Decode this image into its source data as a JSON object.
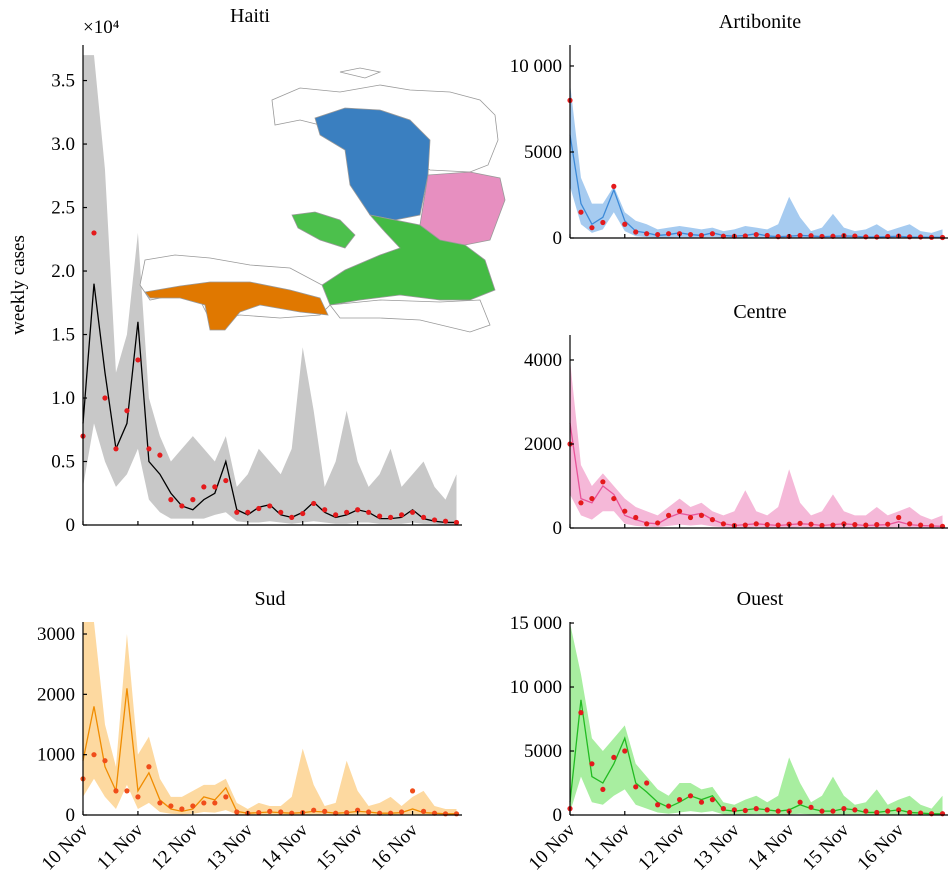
{
  "chart_data": [
    {
      "type": "line",
      "title": "Haiti",
      "ylabel": "weekly cases",
      "multiplier": "×10⁴",
      "x": [
        0,
        0.2,
        0.4,
        0.6,
        0.8,
        1,
        1.2,
        1.4,
        1.6,
        1.8,
        2,
        2.2,
        2.4,
        2.6,
        2.8,
        3,
        3.2,
        3.4,
        3.6,
        3.8,
        4,
        4.2,
        4.4,
        4.6,
        4.8,
        5,
        5.2,
        5.4,
        5.6,
        5.8,
        6,
        6.2,
        6.4,
        6.6,
        6.8
      ],
      "xlim": [
        0,
        6.9
      ],
      "xticks": [
        0,
        1,
        2,
        3,
        4,
        5,
        6
      ],
      "ylim": [
        0,
        3.78
      ],
      "yticks": [
        0,
        0.5,
        {
          "value": 1,
          "label": "1.0"
        },
        1.5,
        {
          "value": 2,
          "label": "2.0"
        },
        2.5,
        {
          "value": 3,
          "label": "3.0"
        },
        3.5
      ],
      "series": [
        {
          "kind": "band",
          "color": "#c8c8c8",
          "lower": [
            0.3,
            0.8,
            0.5,
            0.3,
            0.4,
            0.6,
            0.2,
            0.1,
            0.05,
            0.05,
            0.05,
            0.05,
            0.08,
            0.1,
            0.03,
            0.02,
            0.02,
            0.03,
            0.02,
            0.01,
            0.02,
            0.03,
            0.02,
            0.01,
            0.01,
            0.02,
            0.02,
            0.01,
            0.01,
            0.01,
            0.02,
            0.01,
            0.01,
            0,
            0
          ],
          "upper": [
            3.7,
            3.7,
            2.8,
            1.2,
            1.5,
            2.3,
            1.0,
            0.7,
            0.5,
            0.6,
            0.7,
            0.6,
            0.5,
            0.7,
            0.3,
            0.4,
            0.6,
            0.5,
            0.4,
            0.6,
            1.4,
            0.9,
            0.3,
            0.5,
            0.9,
            0.5,
            0.3,
            0.4,
            0.6,
            0.3,
            0.4,
            0.5,
            0.3,
            0.2,
            0.4
          ]
        },
        {
          "kind": "line",
          "color": "#000000",
          "values": [
            0.8,
            1.9,
            1.2,
            0.6,
            0.8,
            1.6,
            0.5,
            0.4,
            0.25,
            0.15,
            0.12,
            0.2,
            0.25,
            0.5,
            0.12,
            0.08,
            0.14,
            0.16,
            0.08,
            0.06,
            0.1,
            0.18,
            0.1,
            0.06,
            0.08,
            0.12,
            0.1,
            0.05,
            0.05,
            0.06,
            0.12,
            0.05,
            0.03,
            0.02,
            0.02
          ]
        },
        {
          "kind": "points",
          "color": "#e41a1c",
          "values": [
            0.7,
            2.3,
            1.0,
            0.6,
            0.9,
            1.3,
            0.6,
            0.55,
            0.2,
            0.15,
            0.2,
            0.3,
            0.3,
            0.35,
            0.1,
            0.1,
            0.13,
            0.15,
            0.1,
            0.06,
            0.09,
            0.17,
            0.12,
            0.08,
            0.1,
            0.12,
            0.1,
            0.07,
            0.06,
            0.08,
            0.1,
            0.06,
            0.04,
            0.03,
            0.02
          ]
        }
      ]
    },
    {
      "type": "line",
      "title": "Artibonite",
      "x": [
        0,
        0.2,
        0.4,
        0.6,
        0.8,
        1,
        1.2,
        1.4,
        1.6,
        1.8,
        2,
        2.2,
        2.4,
        2.6,
        2.8,
        3,
        3.2,
        3.4,
        3.6,
        3.8,
        4,
        4.2,
        4.4,
        4.6,
        4.8,
        5,
        5.2,
        5.4,
        5.6,
        5.8,
        6,
        6.2,
        6.4,
        6.6,
        6.8
      ],
      "xlim": [
        0,
        6.9
      ],
      "xticks": [
        0,
        1,
        2,
        3,
        4,
        5,
        6
      ],
      "ylim": [
        0,
        11220
      ],
      "yticks": [
        0,
        5000,
        {
          "value": 10000,
          "label": "10 000"
        }
      ],
      "series": [
        {
          "kind": "band",
          "color": "#a6cbf0",
          "lower": [
            3000,
            800,
            300,
            500,
            1500,
            400,
            100,
            50,
            30,
            30,
            40,
            30,
            40,
            50,
            20,
            20,
            20,
            30,
            20,
            10,
            20,
            30,
            20,
            10,
            10,
            20,
            20,
            10,
            10,
            10,
            20,
            10,
            10,
            0,
            0
          ],
          "upper": [
            9000,
            3500,
            2000,
            2000,
            3000,
            1500,
            1000,
            800,
            500,
            600,
            700,
            600,
            500,
            600,
            400,
            500,
            700,
            600,
            500,
            800,
            2400,
            1200,
            400,
            600,
            1400,
            600,
            400,
            500,
            800,
            400,
            600,
            800,
            400,
            300,
            500
          ]
        },
        {
          "kind": "line",
          "color": "#3d8ad8",
          "values": [
            6000,
            2000,
            800,
            1200,
            2800,
            1000,
            400,
            300,
            150,
            200,
            300,
            200,
            150,
            300,
            150,
            100,
            150,
            250,
            120,
            80,
            100,
            150,
            120,
            80,
            100,
            120,
            100,
            60,
            60,
            80,
            100,
            60,
            50,
            40,
            40
          ]
        },
        {
          "kind": "points",
          "color": "#e41a1c",
          "values": [
            8000,
            1500,
            600,
            900,
            3000,
            800,
            350,
            250,
            200,
            250,
            250,
            200,
            150,
            250,
            100,
            100,
            120,
            200,
            150,
            80,
            90,
            150,
            130,
            90,
            100,
            140,
            110,
            70,
            60,
            90,
            110,
            70,
            60,
            40,
            30
          ]
        }
      ]
    },
    {
      "type": "line",
      "title": "Centre",
      "x": [
        0,
        0.2,
        0.4,
        0.6,
        0.8,
        1,
        1.2,
        1.4,
        1.6,
        1.8,
        2,
        2.2,
        2.4,
        2.6,
        2.8,
        3,
        3.2,
        3.4,
        3.6,
        3.8,
        4,
        4.2,
        4.4,
        4.6,
        4.8,
        5,
        5.2,
        5.4,
        5.6,
        5.8,
        6,
        6.2,
        6.4,
        6.6,
        6.8
      ],
      "xlim": [
        0,
        6.9
      ],
      "xticks": [
        0,
        1,
        2,
        3,
        4,
        5,
        6
      ],
      "ylim": [
        0,
        4595
      ],
      "yticks": [
        0,
        2000,
        4000
      ],
      "series": [
        {
          "kind": "band",
          "color": "#f5b8d8",
          "lower": [
            800,
            300,
            200,
            400,
            400,
            100,
            50,
            30,
            20,
            50,
            80,
            60,
            80,
            40,
            20,
            10,
            10,
            20,
            10,
            10,
            10,
            20,
            10,
            10,
            10,
            10,
            10,
            10,
            10,
            10,
            20,
            10,
            10,
            0,
            0
          ],
          "upper": [
            4000,
            1500,
            1000,
            1300,
            1000,
            700,
            500,
            400,
            300,
            500,
            700,
            500,
            600,
            400,
            300,
            400,
            900,
            400,
            300,
            500,
            1400,
            600,
            300,
            400,
            800,
            400,
            300,
            300,
            500,
            300,
            400,
            500,
            300,
            200,
            300
          ]
        },
        {
          "kind": "line",
          "color": "#e8559a",
          "values": [
            2500,
            700,
            600,
            1000,
            800,
            300,
            200,
            120,
            100,
            250,
            350,
            300,
            350,
            200,
            100,
            60,
            80,
            100,
            80,
            60,
            80,
            100,
            90,
            60,
            80,
            100,
            80,
            60,
            70,
            80,
            150,
            80,
            60,
            50,
            40
          ]
        },
        {
          "kind": "points",
          "color": "#e41a1c",
          "values": [
            2000,
            600,
            700,
            1100,
            700,
            400,
            250,
            100,
            120,
            300,
            400,
            250,
            300,
            200,
            100,
            60,
            70,
            100,
            80,
            70,
            90,
            110,
            90,
            60,
            70,
            100,
            80,
            70,
            80,
            90,
            250,
            100,
            70,
            50,
            40
          ]
        }
      ]
    },
    {
      "type": "line",
      "title": "Sud",
      "x": [
        0,
        0.2,
        0.4,
        0.6,
        0.8,
        1,
        1.2,
        1.4,
        1.6,
        1.8,
        2,
        2.2,
        2.4,
        2.6,
        2.8,
        3,
        3.2,
        3.4,
        3.6,
        3.8,
        4,
        4.2,
        4.4,
        4.6,
        4.8,
        5,
        5.2,
        5.4,
        5.6,
        5.8,
        6,
        6.2,
        6.4,
        6.6,
        6.8
      ],
      "xlim": [
        0,
        6.9
      ],
      "xticks": [
        {
          "value": 0,
          "label": "10 Nov"
        },
        {
          "value": 1,
          "label": "11 Nov"
        },
        {
          "value": 2,
          "label": "12 Nov"
        },
        {
          "value": 3,
          "label": "13 Nov"
        },
        {
          "value": 4,
          "label": "14 Nov"
        },
        {
          "value": 5,
          "label": "15 Nov"
        },
        {
          "value": 6,
          "label": "16 Nov"
        }
      ],
      "ylim": [
        0,
        3199
      ],
      "yticks": [
        0,
        1000,
        2000,
        3000
      ],
      "series": [
        {
          "kind": "band",
          "color": "#fdd9a0",
          "lower": [
            300,
            600,
            300,
            100,
            500,
            100,
            200,
            50,
            20,
            10,
            20,
            50,
            40,
            80,
            10,
            5,
            5,
            10,
            5,
            5,
            5,
            10,
            5,
            5,
            5,
            10,
            5,
            5,
            5,
            5,
            10,
            5,
            5,
            0,
            0
          ],
          "upper": [
            3200,
            3200,
            1500,
            800,
            3000,
            1000,
            1300,
            600,
            300,
            300,
            400,
            500,
            500,
            600,
            200,
            100,
            200,
            150,
            150,
            300,
            1100,
            500,
            150,
            200,
            900,
            400,
            150,
            200,
            300,
            150,
            300,
            400,
            150,
            100,
            100
          ]
        },
        {
          "kind": "line",
          "color": "#f08c00",
          "values": [
            900,
            1800,
            800,
            400,
            2100,
            400,
            700,
            250,
            100,
            60,
            100,
            300,
            250,
            450,
            60,
            30,
            40,
            50,
            40,
            30,
            40,
            60,
            50,
            30,
            40,
            60,
            50,
            30,
            30,
            40,
            100,
            40,
            30,
            20,
            20
          ]
        },
        {
          "kind": "points",
          "color": "#f04d1a",
          "values": [
            600,
            1000,
            900,
            400,
            400,
            300,
            800,
            200,
            150,
            100,
            150,
            200,
            200,
            300,
            50,
            30,
            40,
            60,
            50,
            30,
            40,
            80,
            60,
            30,
            40,
            80,
            50,
            30,
            30,
            50,
            400,
            60,
            30,
            20,
            20
          ]
        }
      ]
    },
    {
      "type": "line",
      "title": "Ouest",
      "x": [
        0,
        0.2,
        0.4,
        0.6,
        0.8,
        1,
        1.2,
        1.4,
        1.6,
        1.8,
        2,
        2.2,
        2.4,
        2.6,
        2.8,
        3,
        3.2,
        3.4,
        3.6,
        3.8,
        4,
        4.2,
        4.4,
        4.6,
        4.8,
        5,
        5.2,
        5.4,
        5.6,
        5.8,
        6,
        6.2,
        6.4,
        6.6,
        6.8
      ],
      "xlim": [
        0,
        6.9
      ],
      "xticks": [
        {
          "value": 0,
          "label": "10 Nov"
        },
        {
          "value": 1,
          "label": "11 Nov"
        },
        {
          "value": 2,
          "label": "12 Nov"
        },
        {
          "value": 3,
          "label": "13 Nov"
        },
        {
          "value": 4,
          "label": "14 Nov"
        },
        {
          "value": 5,
          "label": "15 Nov"
        },
        {
          "value": 6,
          "label": "16 Nov"
        }
      ],
      "ylim": [
        0,
        15080
      ],
      "yticks": [
        0,
        5000,
        {
          "value": 10000,
          "label": "10 000"
        },
        {
          "value": 15000,
          "label": "15 000"
        }
      ],
      "series": [
        {
          "kind": "band",
          "color": "#a8eea0",
          "lower": [
            200,
            3000,
            1000,
            800,
            1500,
            2000,
            800,
            500,
            200,
            100,
            200,
            300,
            200,
            300,
            50,
            50,
            50,
            80,
            50,
            30,
            50,
            100,
            50,
            30,
            30,
            50,
            50,
            20,
            20,
            30,
            50,
            20,
            20,
            0,
            0
          ],
          "upper": [
            15000,
            11000,
            6000,
            5000,
            6000,
            7000,
            4000,
            3000,
            2000,
            1500,
            2500,
            2500,
            2000,
            2200,
            1000,
            800,
            1200,
            1500,
            1000,
            1500,
            4500,
            2500,
            1000,
            1500,
            3000,
            1500,
            800,
            1000,
            2000,
            800,
            1200,
            1500,
            800,
            500,
            1500
          ]
        },
        {
          "kind": "line",
          "color": "#22bb22",
          "values": [
            1000,
            9000,
            3000,
            2500,
            4000,
            6000,
            2500,
            1800,
            1000,
            600,
            1000,
            1500,
            1200,
            1500,
            400,
            300,
            400,
            500,
            400,
            300,
            400,
            800,
            500,
            300,
            300,
            500,
            400,
            200,
            200,
            300,
            400,
            200,
            150,
            100,
            100
          ]
        },
        {
          "kind": "points",
          "color": "#e41a1c",
          "values": [
            500,
            8000,
            4000,
            2000,
            4500,
            5000,
            2200,
            2500,
            800,
            700,
            1200,
            1500,
            1000,
            1200,
            500,
            400,
            350,
            500,
            400,
            300,
            300,
            1000,
            600,
            300,
            300,
            500,
            400,
            300,
            200,
            300,
            400,
            200,
            150,
            100,
            100
          ]
        }
      ]
    }
  ]
}
